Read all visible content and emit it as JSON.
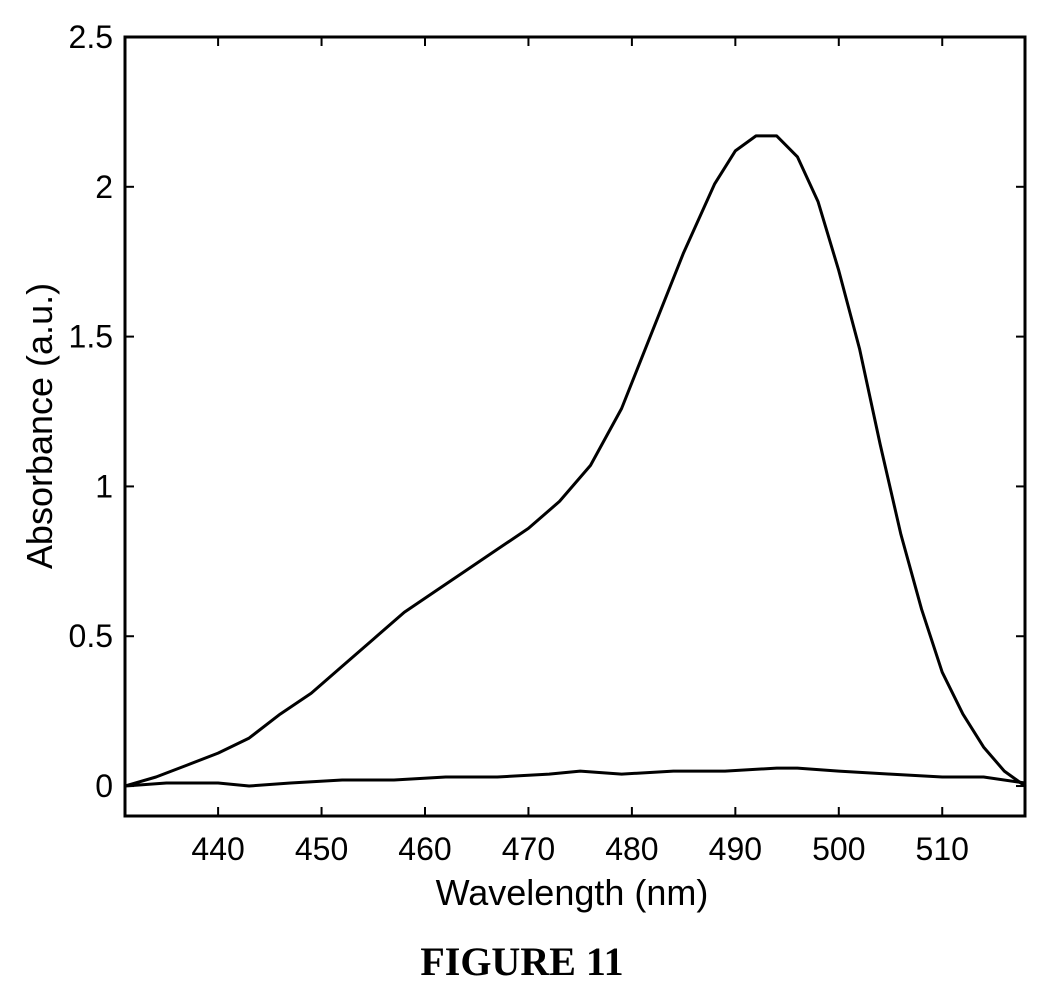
{
  "caption": "FIGURE 11",
  "chart_data": {
    "type": "line",
    "title": "",
    "xlabel": "Wavelength (nm)",
    "ylabel": "Absorbance (a.u.)",
    "xlim": [
      431,
      518
    ],
    "ylim": [
      -0.1,
      2.5
    ],
    "xticks": [
      440,
      450,
      460,
      470,
      480,
      490,
      500,
      510
    ],
    "yticks": [
      0,
      0.5,
      1,
      1.5,
      2,
      2.5
    ],
    "grid": false,
    "legend": "none",
    "line_color": "#000000",
    "series": [
      {
        "x": [
          431,
          434,
          437,
          440,
          443,
          446,
          449,
          452,
          455,
          458,
          461,
          464,
          467,
          470,
          473,
          476,
          479,
          482,
          485,
          488,
          490,
          492,
          494,
          496,
          498,
          500,
          502,
          504,
          506,
          508,
          510,
          512,
          514,
          516,
          518
        ],
        "y": [
          0,
          0.03,
          0.07,
          0.11,
          0.16,
          0.24,
          0.31,
          0.4,
          0.49,
          0.58,
          0.65,
          0.72,
          0.79,
          0.86,
          0.95,
          1.07,
          1.26,
          1.52,
          1.78,
          2.01,
          2.12,
          2.17,
          2.17,
          2.1,
          1.95,
          1.72,
          1.46,
          1.14,
          0.84,
          0.59,
          0.38,
          0.24,
          0.13,
          0.05,
          0
        ]
      },
      {
        "x": [
          431,
          435,
          440,
          443,
          447,
          452,
          457,
          462,
          467,
          472,
          475,
          479,
          484,
          489,
          494,
          496,
          500,
          505,
          510,
          514,
          518
        ],
        "y": [
          0,
          0.01,
          0.01,
          0,
          0.01,
          0.02,
          0.02,
          0.03,
          0.03,
          0.04,
          0.05,
          0.04,
          0.05,
          0.05,
          0.06,
          0.06,
          0.05,
          0.04,
          0.03,
          0.03,
          0.01
        ]
      }
    ]
  }
}
